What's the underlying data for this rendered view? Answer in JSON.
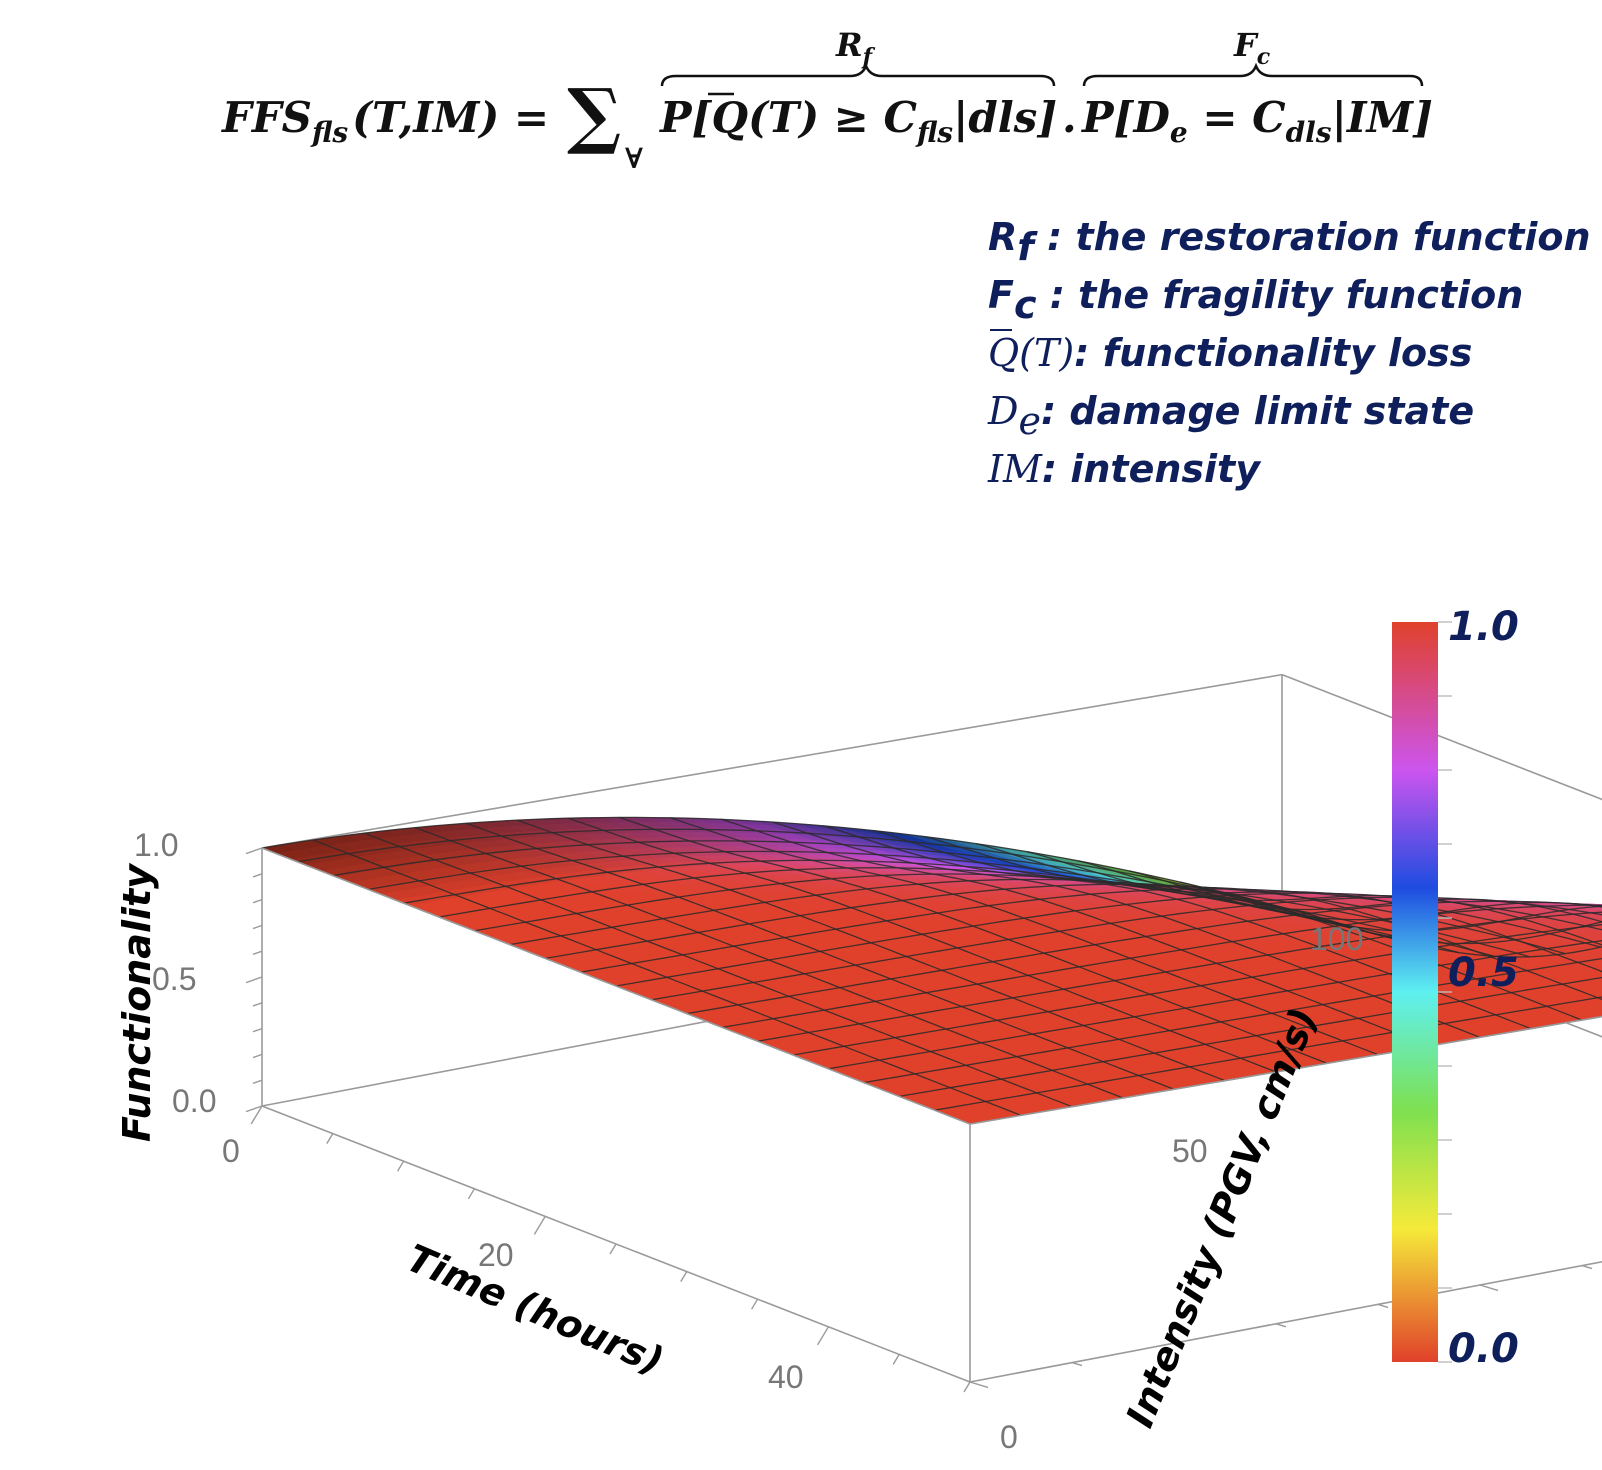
{
  "formula": {
    "lhs": "FFS",
    "lhs_sub": "fls",
    "lhs_args": "(T,IM) =",
    "sum_symbol": "∑",
    "sum_sub": "∀",
    "rf_label": "R",
    "rf_sub": "f",
    "term1_a": "P[",
    "term1_q": "Q",
    "term1_b": "(T) ≥ C",
    "term1_sub": "fls",
    "term1_c": "|dls]",
    "dot": ".",
    "fc_label": "F",
    "fc_sub": "c",
    "term2_a": "P[D",
    "term2_sub1": "e",
    "term2_b": " = C",
    "term2_sub2": "dls",
    "term2_c": "|IM]"
  },
  "legend": [
    {
      "sym": "R",
      "sub": "f",
      "text": " : the restoration function"
    },
    {
      "sym": "F",
      "sub": "c",
      "text": " : the fragility function"
    },
    {
      "sym": "Q",
      "sub": "",
      "suffix": "(T)",
      "text": ": functionality loss"
    },
    {
      "sym": "D",
      "sub": "e",
      "text": ": damage limit state"
    },
    {
      "sym": "IM",
      "sub": "",
      "text": ": intensity"
    }
  ],
  "chart_data": {
    "type": "surface3d",
    "title": "",
    "xlabel": "Time (hours)",
    "ylabel": "Intensity (PGV, cm/s)",
    "zlabel": "Functionality",
    "x_range": [
      0,
      50
    ],
    "y_range": [
      0,
      100
    ],
    "z_range": [
      0,
      1
    ],
    "x_ticks": [
      "0",
      "20",
      "40"
    ],
    "y_ticks": [
      "0",
      "50",
      "100"
    ],
    "z_ticks": [
      "0.0",
      "0.5",
      "1.0"
    ],
    "colorbar": {
      "ticks": [
        "0.0",
        "0.5",
        "1.0"
      ],
      "colors": [
        "#e0412b",
        "#f5ea3a",
        "#7ee050",
        "#5ef0f0",
        "#1e4ce0",
        "#cc55ee",
        "#e0412b"
      ]
    },
    "mesh": {
      "x_lines": 21,
      "y_lines": 21
    },
    "surface_samples": {
      "x": [
        0,
        5,
        10,
        20,
        30,
        40,
        50
      ],
      "y_0": [
        1,
        1,
        1,
        1,
        1,
        1,
        1
      ],
      "y_50": [
        0.15,
        0.55,
        0.75,
        0.9,
        0.97,
        0.99,
        1
      ],
      "y_100": [
        0.02,
        0.1,
        0.25,
        0.55,
        0.8,
        0.94,
        0.98
      ]
    }
  }
}
